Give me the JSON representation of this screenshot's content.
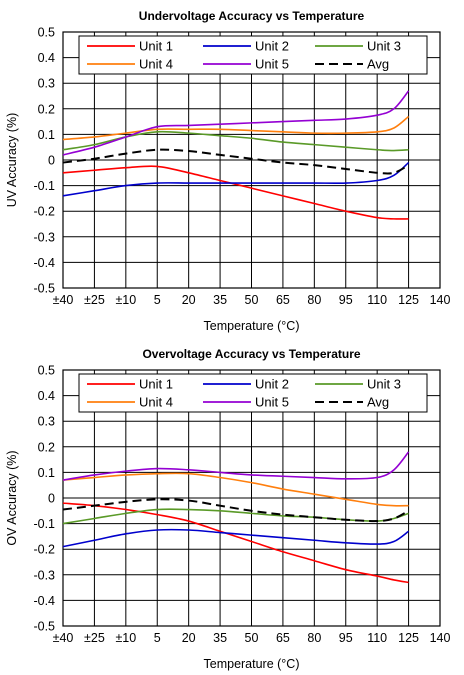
{
  "chart_data": [
    {
      "type": "line",
      "title": "Undervoltage Accuracy vs Temperature",
      "xlabel": "Temperature (°C)",
      "ylabel": "UV Accuracy (%)",
      "xticks": [
        "±40",
        "±25",
        "±10",
        "5",
        "20",
        "35",
        "50",
        "65",
        "80",
        "95",
        "110",
        "125",
        "140"
      ],
      "xlim": [
        -40,
        140
      ],
      "ylim": [
        -0.5,
        0.5
      ],
      "yticks": [
        "-0.5",
        "-0.4",
        "-0.3",
        "-0.2",
        "-0.1",
        "0",
        "0.1",
        "0.2",
        "0.3",
        "0.4",
        "0.5"
      ],
      "grid": true,
      "legend_position": "top",
      "x": [
        -40,
        -25,
        -10,
        5,
        20,
        35,
        50,
        65,
        80,
        95,
        110,
        118,
        125
      ],
      "series": [
        {
          "name": "Unit 1",
          "color": "#ff0000",
          "dash": false,
          "values": [
            -0.05,
            -0.04,
            -0.03,
            -0.025,
            -0.05,
            -0.08,
            -0.11,
            -0.14,
            -0.17,
            -0.2,
            -0.225,
            -0.23,
            -0.23
          ]
        },
        {
          "name": "Unit 2",
          "color": "#0000cc",
          "dash": false,
          "values": [
            -0.14,
            -0.12,
            -0.1,
            -0.09,
            -0.09,
            -0.09,
            -0.09,
            -0.09,
            -0.09,
            -0.09,
            -0.08,
            -0.06,
            -0.01
          ]
        },
        {
          "name": "Unit 3",
          "color": "#5a9a28",
          "dash": false,
          "values": [
            0.04,
            0.06,
            0.09,
            0.11,
            0.105,
            0.095,
            0.085,
            0.07,
            0.06,
            0.05,
            0.04,
            0.037,
            0.04
          ]
        },
        {
          "name": "Unit 4",
          "color": "#ff7f0e",
          "dash": false,
          "values": [
            0.08,
            0.09,
            0.105,
            0.12,
            0.12,
            0.12,
            0.115,
            0.11,
            0.105,
            0.105,
            0.11,
            0.125,
            0.17
          ]
        },
        {
          "name": "Unit 5",
          "color": "#9400d3",
          "dash": false,
          "values": [
            0.02,
            0.05,
            0.09,
            0.13,
            0.135,
            0.14,
            0.145,
            0.15,
            0.155,
            0.16,
            0.175,
            0.2,
            0.27
          ]
        },
        {
          "name": "Avg",
          "color": "#000000",
          "dash": true,
          "values": [
            -0.01,
            0.005,
            0.025,
            0.04,
            0.035,
            0.02,
            0.005,
            -0.01,
            -0.02,
            -0.035,
            -0.05,
            -0.05,
            -0.02
          ]
        }
      ]
    },
    {
      "type": "line",
      "title": "Overvoltage Accuracy vs Temperature",
      "xlabel": "Temperature (°C)",
      "ylabel": "OV Accuracy (%)",
      "xticks": [
        "±40",
        "±25",
        "±10",
        "5",
        "20",
        "35",
        "50",
        "65",
        "80",
        "95",
        "110",
        "125",
        "140"
      ],
      "xlim": [
        -40,
        140
      ],
      "ylim": [
        -0.5,
        0.5
      ],
      "yticks": [
        "-0.5",
        "-0.4",
        "-0.3",
        "-0.2",
        "-0.1",
        "0",
        "0.1",
        "0.2",
        "0.3",
        "0.4",
        "0.5"
      ],
      "grid": true,
      "legend_position": "top",
      "x": [
        -40,
        -25,
        -10,
        5,
        20,
        35,
        50,
        65,
        80,
        95,
        110,
        118,
        125
      ],
      "series": [
        {
          "name": "Unit 1",
          "color": "#ff0000",
          "dash": false,
          "values": [
            -0.02,
            -0.03,
            -0.045,
            -0.065,
            -0.09,
            -0.13,
            -0.17,
            -0.21,
            -0.245,
            -0.28,
            -0.305,
            -0.32,
            -0.33
          ]
        },
        {
          "name": "Unit 2",
          "color": "#0000cc",
          "dash": false,
          "values": [
            -0.19,
            -0.165,
            -0.14,
            -0.125,
            -0.125,
            -0.135,
            -0.145,
            -0.155,
            -0.165,
            -0.175,
            -0.18,
            -0.17,
            -0.13
          ]
        },
        {
          "name": "Unit 3",
          "color": "#5a9a28",
          "dash": false,
          "values": [
            -0.1,
            -0.08,
            -0.06,
            -0.045,
            -0.045,
            -0.05,
            -0.06,
            -0.07,
            -0.075,
            -0.085,
            -0.09,
            -0.08,
            -0.06
          ]
        },
        {
          "name": "Unit 4",
          "color": "#ff7f0e",
          "dash": false,
          "values": [
            0.07,
            0.08,
            0.09,
            0.095,
            0.095,
            0.08,
            0.06,
            0.035,
            0.015,
            -0.005,
            -0.025,
            -0.03,
            -0.03
          ]
        },
        {
          "name": "Unit 5",
          "color": "#9400d3",
          "dash": false,
          "values": [
            0.07,
            0.09,
            0.105,
            0.115,
            0.11,
            0.1,
            0.09,
            0.085,
            0.08,
            0.075,
            0.08,
            0.11,
            0.18
          ]
        },
        {
          "name": "Avg",
          "color": "#000000",
          "dash": true,
          "values": [
            -0.045,
            -0.03,
            -0.015,
            -0.005,
            -0.01,
            -0.03,
            -0.05,
            -0.065,
            -0.075,
            -0.085,
            -0.09,
            -0.08,
            -0.05
          ]
        }
      ]
    }
  ]
}
